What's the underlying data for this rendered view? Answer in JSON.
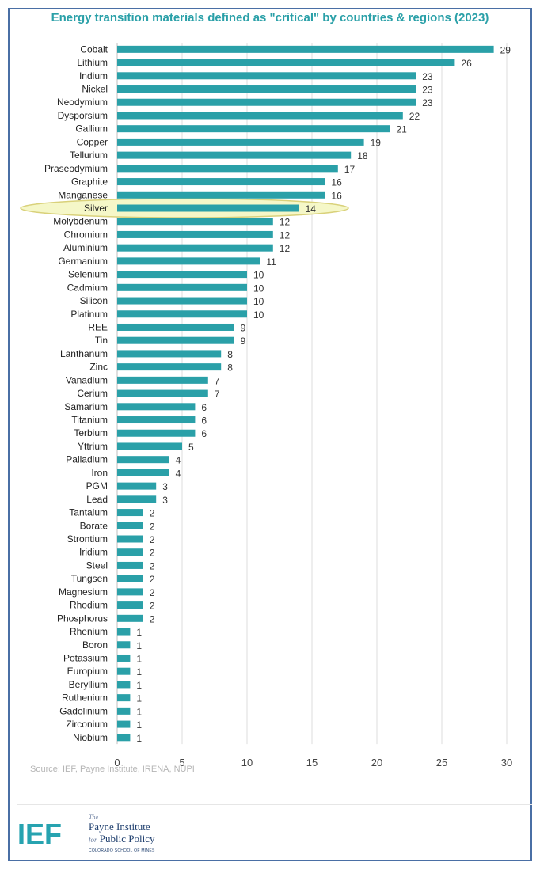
{
  "chart_data": {
    "type": "bar",
    "orientation": "horizontal",
    "title": "Energy transition materials defined as \"critical\" by countries & regions (2023)",
    "categories": [
      "Cobalt",
      "Lithium",
      "Indium",
      "Nickel",
      "Neodymium",
      "Dysporsium",
      "Gallium",
      "Copper",
      "Tellurium",
      "Praseodymium",
      "Graphite",
      "Manganese",
      "Silver",
      "Molybdenum",
      "Chromium",
      "Aluminium",
      "Germanium",
      "Selenium",
      "Cadmium",
      "Silicon",
      "Platinum",
      "REE",
      "Tin",
      "Lanthanum",
      "Zinc",
      "Vanadium",
      "Cerium",
      "Samarium",
      "Titanium",
      "Terbium",
      "Yttrium",
      "Palladium",
      "Iron",
      "PGM",
      "Lead",
      "Tantalum",
      "Borate",
      "Strontium",
      "Iridium",
      "Steel",
      "Tungsen",
      "Magnesium",
      "Rhodium",
      "Phosphorus",
      "Rhenium",
      "Boron",
      "Potassium",
      "Europium",
      "Beryllium",
      "Ruthenium",
      "Gadolinium",
      "Zirconium",
      "Niobium"
    ],
    "values": [
      29,
      26,
      23,
      23,
      23,
      22,
      21,
      19,
      18,
      17,
      16,
      16,
      14,
      12,
      12,
      12,
      11,
      10,
      10,
      10,
      10,
      9,
      9,
      8,
      8,
      7,
      7,
      6,
      6,
      6,
      5,
      4,
      4,
      3,
      3,
      2,
      2,
      2,
      2,
      2,
      2,
      2,
      2,
      2,
      1,
      1,
      1,
      1,
      1,
      1,
      1,
      1,
      1
    ],
    "highlight": "Silver",
    "xlim": [
      0,
      30
    ],
    "xticks": [
      0,
      5,
      10,
      15,
      20,
      25,
      30
    ],
    "grid": true,
    "bar_color": "#2aa0a8",
    "highlight_fill": "#f5f7c8",
    "highlight_stroke": "#d9d17a"
  },
  "source": "Source: IEF, Payne Institute, IRENA, NUPI",
  "logos": {
    "ief": "IEF",
    "payne_the": "The",
    "payne_line1": "Payne Institute",
    "payne_for": "for",
    "payne_line2": "Public Policy",
    "payne_school": "COLORADO SCHOOL OF MINES"
  }
}
